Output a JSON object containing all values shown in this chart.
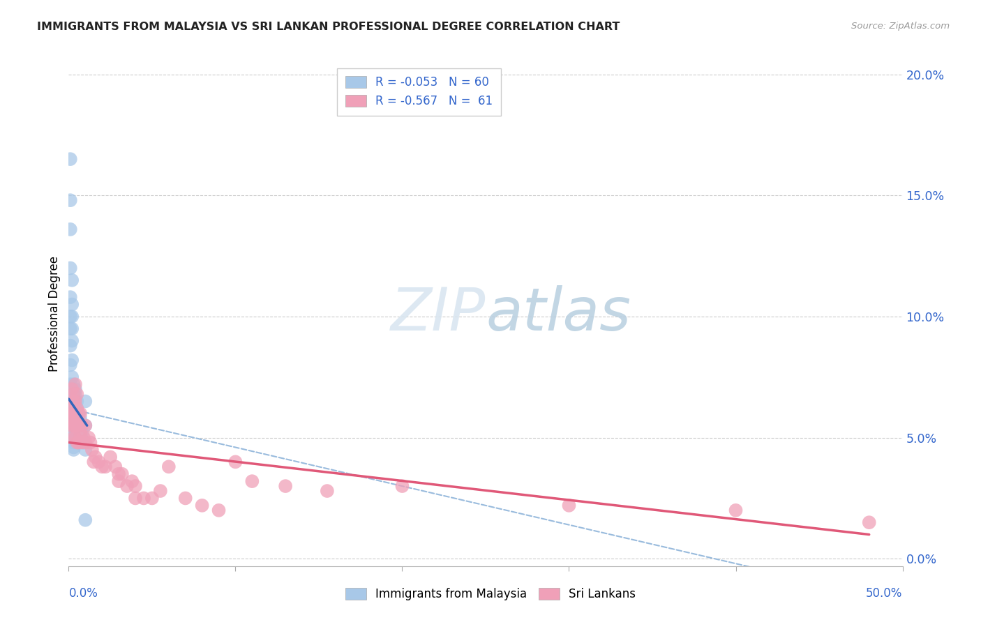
{
  "title": "IMMIGRANTS FROM MALAYSIA VS SRI LANKAN PROFESSIONAL DEGREE CORRELATION CHART",
  "source": "Source: ZipAtlas.com",
  "ylabel": "Professional Degree",
  "legend_malaysia_r": "R = -0.053",
  "legend_malaysia_n": "N = 60",
  "legend_srilanka_r": "R = -0.567",
  "legend_srilanka_n": "N =  61",
  "malaysia_color": "#a8c8e8",
  "srilanka_color": "#f0a0b8",
  "malaysia_line_color": "#3366bb",
  "srilanka_line_color": "#e05878",
  "trendline_dashed_color": "#99bbdd",
  "xlim": [
    0.0,
    0.5
  ],
  "ylim": [
    -0.003,
    0.205
  ],
  "right_ytick_vals": [
    0.0,
    0.05,
    0.1,
    0.15,
    0.2
  ],
  "right_ytick_labels": [
    "0.0%",
    "5.0%",
    "10.0%",
    "15.0%",
    "20.0%"
  ],
  "malaysia_x": [
    0.001,
    0.001,
    0.001,
    0.001,
    0.001,
    0.001,
    0.001,
    0.001,
    0.001,
    0.001,
    0.002,
    0.002,
    0.002,
    0.002,
    0.002,
    0.002,
    0.002,
    0.002,
    0.002,
    0.002,
    0.002,
    0.002,
    0.002,
    0.002,
    0.002,
    0.002,
    0.002,
    0.003,
    0.003,
    0.003,
    0.003,
    0.003,
    0.003,
    0.003,
    0.003,
    0.003,
    0.003,
    0.003,
    0.003,
    0.003,
    0.004,
    0.004,
    0.004,
    0.004,
    0.004,
    0.004,
    0.005,
    0.005,
    0.005,
    0.005,
    0.006,
    0.006,
    0.007,
    0.007,
    0.008,
    0.009,
    0.01,
    0.01,
    0.01,
    0.01
  ],
  "malaysia_y": [
    0.165,
    0.148,
    0.136,
    0.12,
    0.108,
    0.1,
    0.095,
    0.088,
    0.08,
    0.072,
    0.115,
    0.105,
    0.1,
    0.095,
    0.09,
    0.082,
    0.075,
    0.07,
    0.065,
    0.06,
    0.068,
    0.065,
    0.063,
    0.06,
    0.058,
    0.055,
    0.052,
    0.072,
    0.068,
    0.065,
    0.063,
    0.06,
    0.058,
    0.056,
    0.055,
    0.053,
    0.05,
    0.048,
    0.046,
    0.045,
    0.07,
    0.068,
    0.065,
    0.063,
    0.06,
    0.058,
    0.065,
    0.062,
    0.06,
    0.058,
    0.06,
    0.058,
    0.058,
    0.055,
    0.052,
    0.048,
    0.065,
    0.055,
    0.045,
    0.016
  ],
  "srilanka_x": [
    0.001,
    0.001,
    0.002,
    0.002,
    0.002,
    0.003,
    0.003,
    0.003,
    0.003,
    0.003,
    0.004,
    0.004,
    0.004,
    0.004,
    0.004,
    0.005,
    0.005,
    0.005,
    0.005,
    0.006,
    0.006,
    0.006,
    0.007,
    0.007,
    0.008,
    0.008,
    0.009,
    0.01,
    0.01,
    0.012,
    0.013,
    0.014,
    0.015,
    0.016,
    0.018,
    0.02,
    0.022,
    0.025,
    0.028,
    0.03,
    0.03,
    0.032,
    0.035,
    0.038,
    0.04,
    0.04,
    0.045,
    0.05,
    0.055,
    0.06,
    0.07,
    0.08,
    0.09,
    0.1,
    0.11,
    0.13,
    0.155,
    0.2,
    0.3,
    0.4,
    0.48
  ],
  "srilanka_y": [
    0.06,
    0.055,
    0.07,
    0.062,
    0.058,
    0.068,
    0.065,
    0.06,
    0.055,
    0.05,
    0.072,
    0.065,
    0.06,
    0.055,
    0.05,
    0.068,
    0.062,
    0.055,
    0.048,
    0.06,
    0.055,
    0.048,
    0.06,
    0.052,
    0.055,
    0.048,
    0.05,
    0.055,
    0.048,
    0.05,
    0.048,
    0.045,
    0.04,
    0.042,
    0.04,
    0.038,
    0.038,
    0.042,
    0.038,
    0.035,
    0.032,
    0.035,
    0.03,
    0.032,
    0.03,
    0.025,
    0.025,
    0.025,
    0.028,
    0.038,
    0.025,
    0.022,
    0.02,
    0.04,
    0.032,
    0.03,
    0.028,
    0.03,
    0.022,
    0.02,
    0.015
  ]
}
